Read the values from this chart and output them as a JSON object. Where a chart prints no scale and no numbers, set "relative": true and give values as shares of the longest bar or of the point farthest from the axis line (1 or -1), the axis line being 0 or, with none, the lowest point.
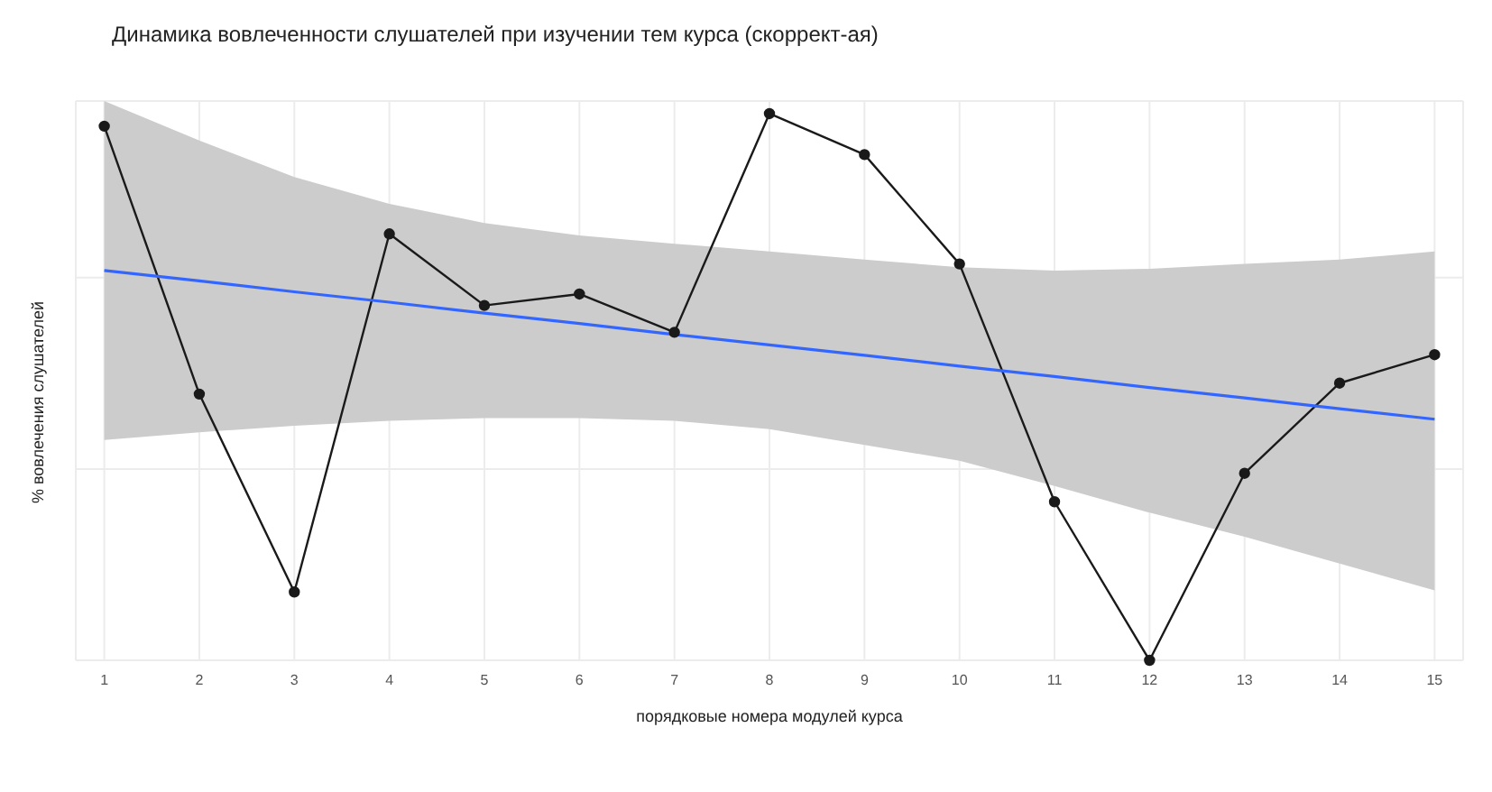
{
  "chart_data": {
    "type": "line",
    "title": "Динамика вовлеченности слушателей при изучении тем курса (скоррект-ая)",
    "xlabel": "порядковые номера модулей курса",
    "ylabel": "% вовлечения слушателей",
    "relative": true,
    "grid": true,
    "legend": false,
    "categories": [
      "1",
      "2",
      "3",
      "4",
      "5",
      "6",
      "7",
      "8",
      "9",
      "10",
      "11",
      "12",
      "13",
      "14",
      "15"
    ],
    "series": [
      {
        "color": "#1a1a1a",
        "marker": "circle",
        "values": [
          0.977,
          0.487,
          0.125,
          0.78,
          0.649,
          0.67,
          0.6,
          1,
          0.925,
          0.725,
          0.29,
          0,
          0.342,
          0.507,
          0.559
        ]
      },
      {
        "color": "#3366ff",
        "marker": "none",
        "values": [
          0.713,
          0.694,
          0.674,
          0.655,
          0.635,
          0.616,
          0.596,
          0.577,
          0.558,
          0.538,
          0.519,
          0.499,
          0.48,
          0.46,
          0.441
        ],
        "lower": [
          0.403,
          0.417,
          0.429,
          0.438,
          0.443,
          0.443,
          0.438,
          0.423,
          0.394,
          0.365,
          0.319,
          0.27,
          0.226,
          0.177,
          0.128
        ],
        "upper": [
          1.023,
          0.951,
          0.884,
          0.835,
          0.8,
          0.777,
          0.762,
          0.748,
          0.733,
          0.719,
          0.713,
          0.716,
          0.725,
          0.733,
          0.748
        ]
      }
    ]
  }
}
